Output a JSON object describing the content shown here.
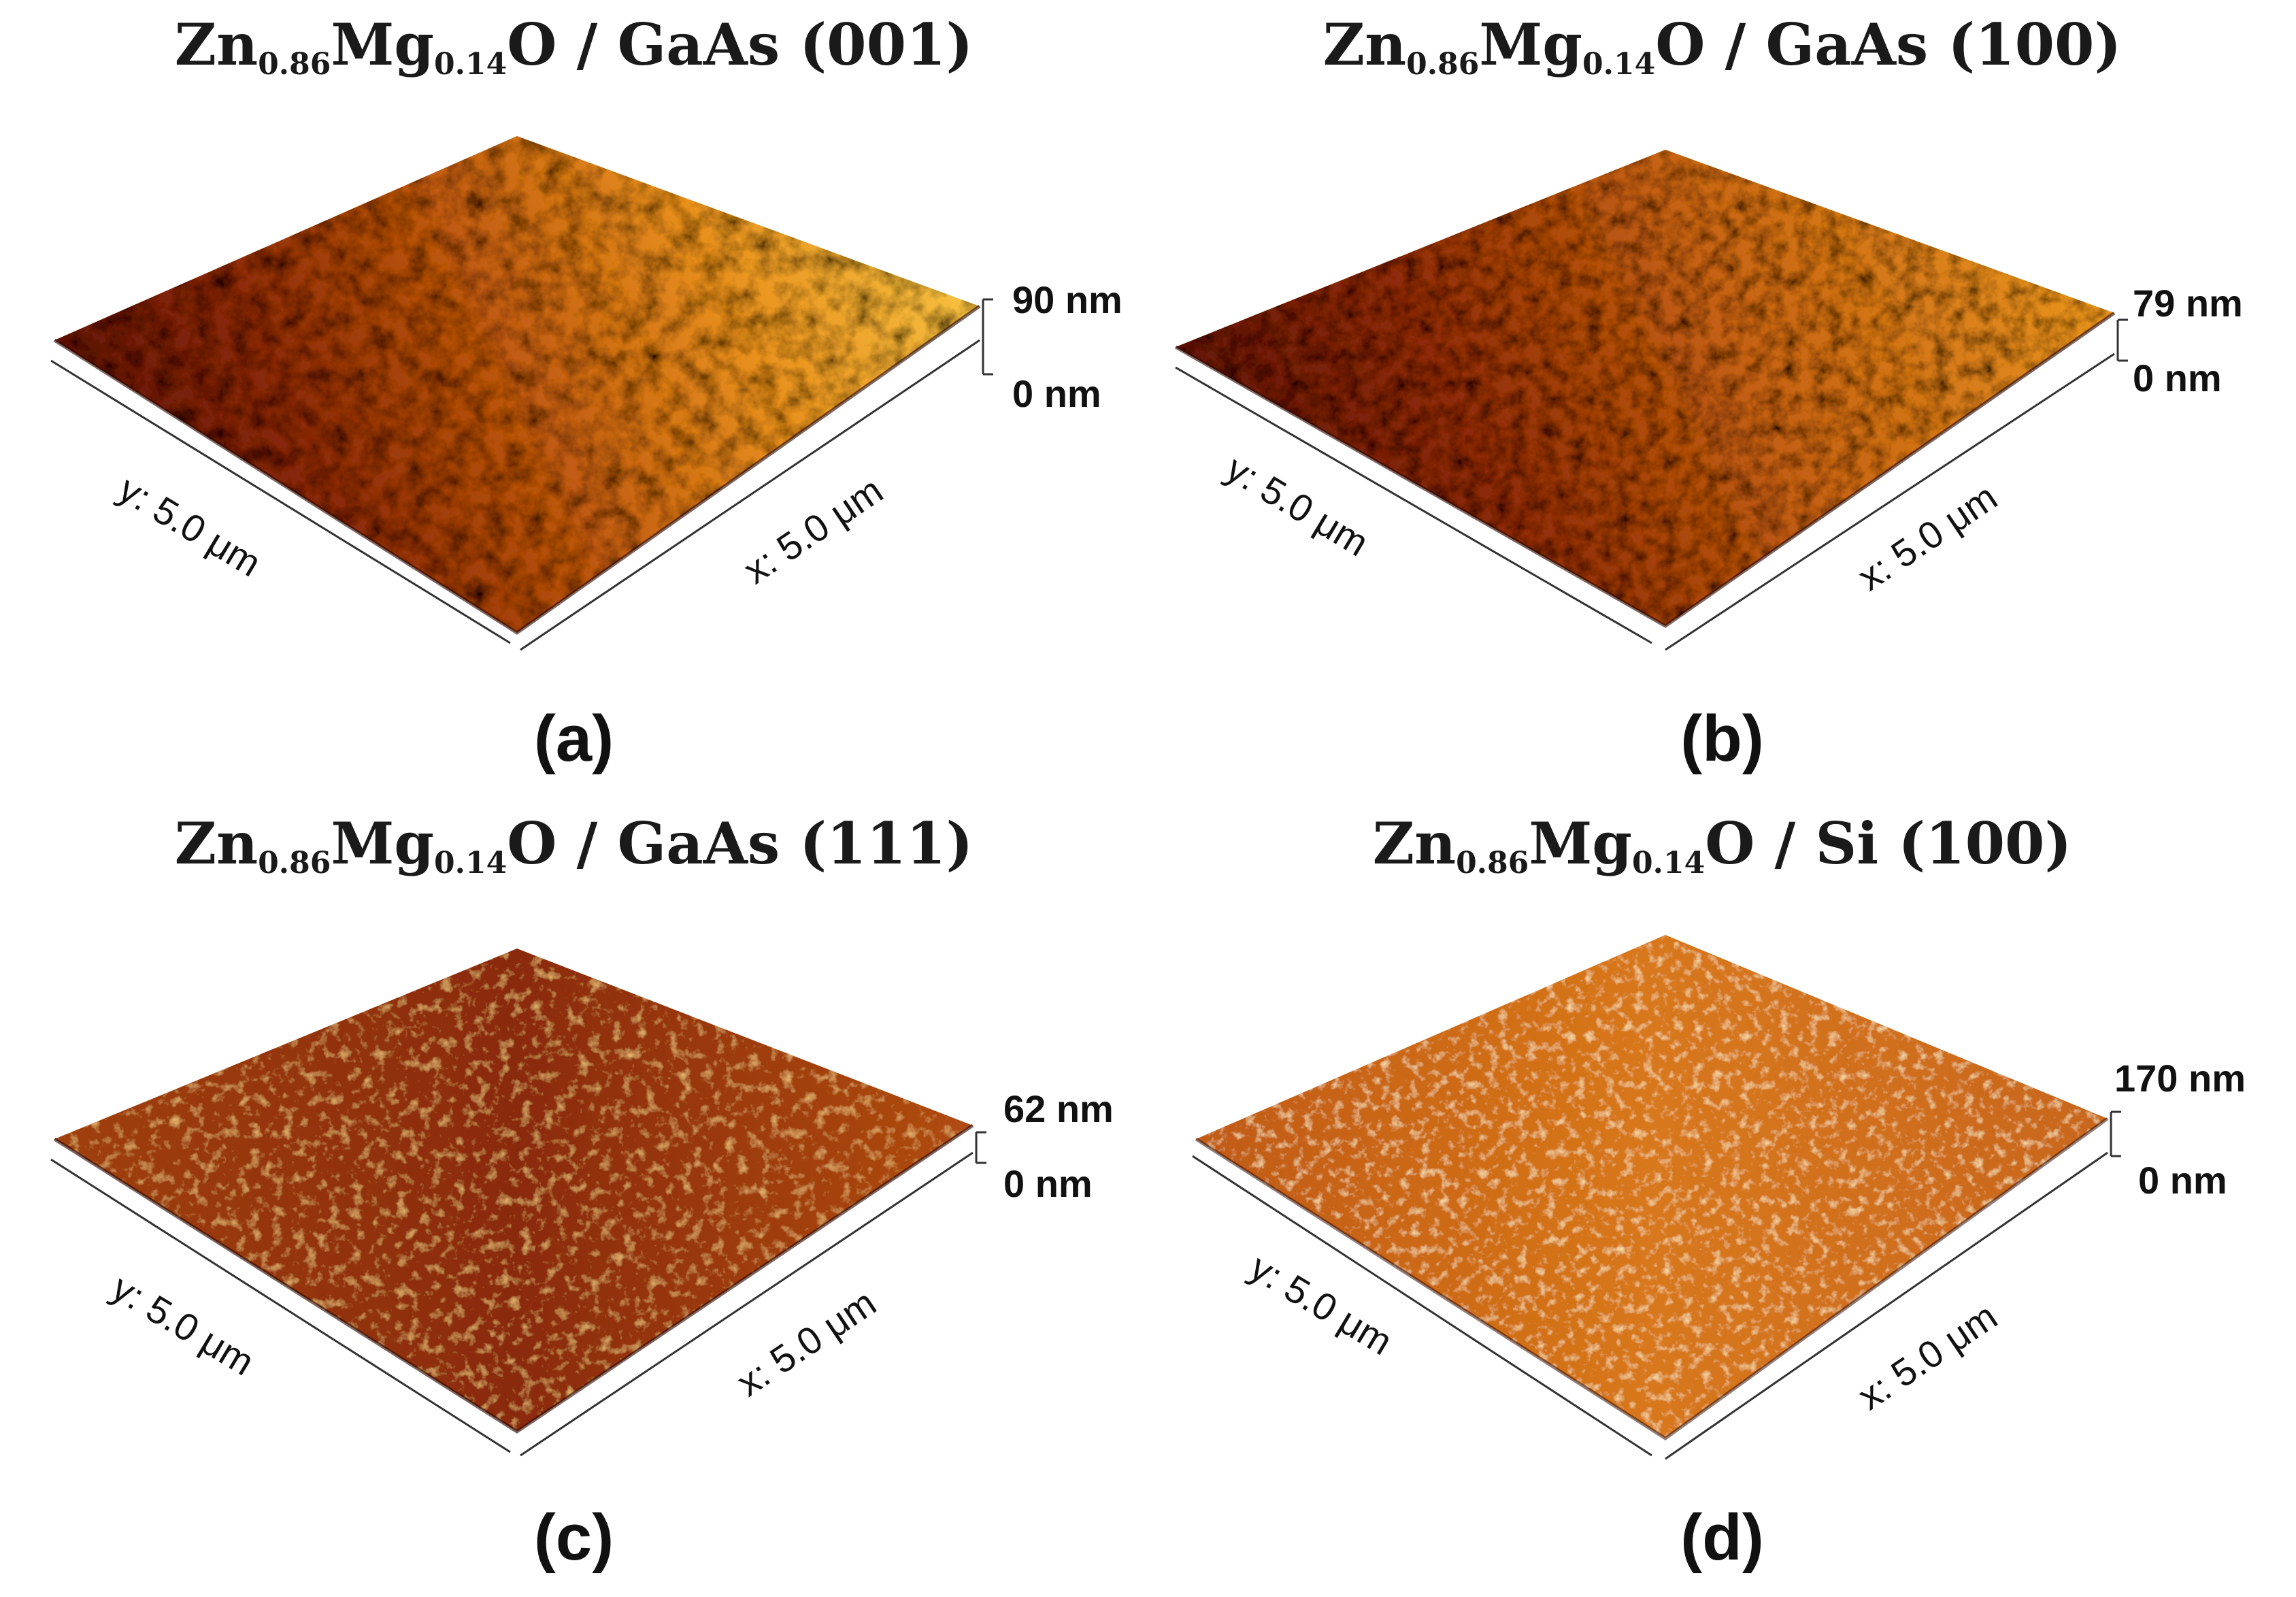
{
  "panels": [
    {
      "id": "a",
      "label": "(a)",
      "title": {
        "base1": "Zn",
        "sub1": "0.86",
        "base2": "Mg",
        "sub2": "0.14",
        "rest": "O / GaAs (001)"
      },
      "z_max": "90 nm",
      "z_min": "0 nm",
      "x_label": "x: 5.0 μm",
      "y_label": "y: 5.0 μm"
    },
    {
      "id": "b",
      "label": "(b)",
      "title": {
        "base1": "Zn",
        "sub1": "0.86",
        "base2": "Mg",
        "sub2": "0.14",
        "rest": "O / GaAs (100)"
      },
      "z_max": "79 nm",
      "z_min": "0 nm",
      "x_label": "x: 5.0 μm",
      "y_label": "y: 5.0 μm"
    },
    {
      "id": "c",
      "label": "(c)",
      "title": {
        "base1": "Zn",
        "sub1": "0.86",
        "base2": "Mg",
        "sub2": "0.14",
        "rest": "O / GaAs (111)"
      },
      "z_max": "62 nm",
      "z_min": "0 nm",
      "x_label": "x: 5.0 μm",
      "y_label": "y: 5.0 μm"
    },
    {
      "id": "d",
      "label": "(d)",
      "title": {
        "base1": "Zn",
        "sub1": "0.86",
        "base2": "Mg",
        "sub2": "0.14",
        "rest": "O / Si (100)"
      },
      "z_max": "170 nm",
      "z_min": "0 nm",
      "x_label": "x: 5.0 μm",
      "y_label": "y: 5.0 μm"
    }
  ],
  "colormap": {
    "dark": "#3a0a04",
    "mid_dark": "#7a1e08",
    "mid": "#b84a10",
    "light": "#e88a1c",
    "bright": "#f8c040",
    "highlight": "#fff0c8"
  }
}
